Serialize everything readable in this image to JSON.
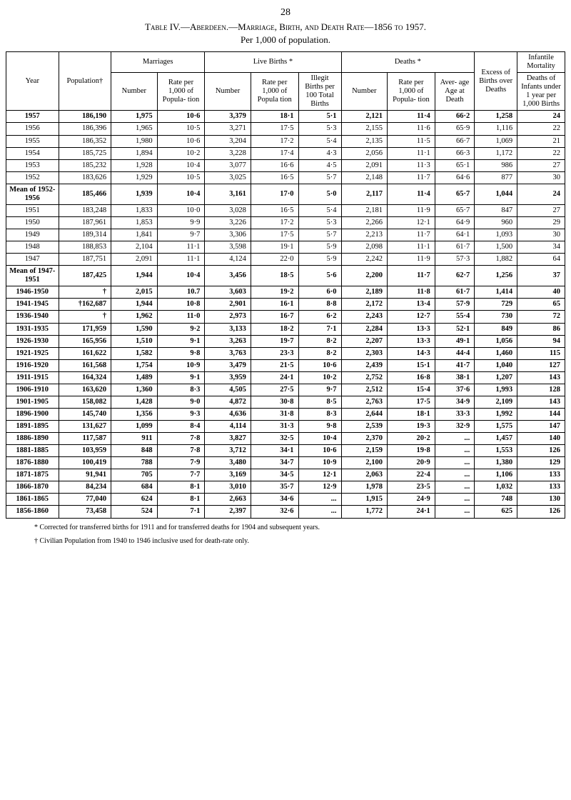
{
  "page_number": "28",
  "title": "Table IV.—Aberdeen.—Marriage, Birth, and Death Rate—1856 to 1957.",
  "subtitle": "Per 1,000 of population.",
  "headers": {
    "year": "Year",
    "population": "Population†",
    "marriages": "Marriages",
    "live_births": "Live Births *",
    "deaths": "Deaths *",
    "excess": "Excess of Births over Deaths",
    "infantile": "Infantile Mortality",
    "number": "Number",
    "marr_rate": "Rate per 1,000 of Popula- tion",
    "birth_rate": "Rate per 1,000 of Popula tion",
    "illegit": "Illegit Births per 100 Total Births",
    "death_rate": "Rate per 1,000 of Popula- tion",
    "aver_age": "Aver- age Age at Death",
    "deaths_of": "Deaths of Infants under 1 year per 1,000 Births"
  },
  "rows": [
    {
      "y": "1957",
      "pop": "186,190",
      "mn": "1,975",
      "mr": "10·6",
      "bn": "3,379",
      "br": "18·1",
      "il": "5·1",
      "dn": "2,121",
      "dr": "11·4",
      "aa": "66·2",
      "ex": "1,258",
      "im": "24",
      "bold": true,
      "sep": true
    },
    {
      "y": "1956",
      "pop": "186,396",
      "mn": "1,965",
      "mr": "10·5",
      "bn": "3,271",
      "br": "17·5",
      "il": "5·3",
      "dn": "2,155",
      "dr": "11·6",
      "aa": "65·9",
      "ex": "1,116",
      "im": "22"
    },
    {
      "y": "1955",
      "pop": "186,352",
      "mn": "1,980",
      "mr": "10·6",
      "bn": "3,204",
      "br": "17·2",
      "il": "5·4",
      "dn": "2,135",
      "dr": "11·5",
      "aa": "66·7",
      "ex": "1,069",
      "im": "21"
    },
    {
      "y": "1954",
      "pop": "185,725",
      "mn": "1,894",
      "mr": "10·2",
      "bn": "3,228",
      "br": "17·4",
      "il": "4·3",
      "dn": "2,056",
      "dr": "11·1",
      "aa": "66·3",
      "ex": "1,172",
      "im": "22"
    },
    {
      "y": "1953",
      "pop": "185,232",
      "mn": "1,928",
      "mr": "10·4",
      "bn": "3,077",
      "br": "16·6",
      "il": "4·5",
      "dn": "2,091",
      "dr": "11·3",
      "aa": "65·1",
      "ex": "986",
      "im": "27"
    },
    {
      "y": "1952",
      "pop": "183,626",
      "mn": "1,929",
      "mr": "10·5",
      "bn": "3,025",
      "br": "16·5",
      "il": "5·7",
      "dn": "2,148",
      "dr": "11·7",
      "aa": "64·6",
      "ex": "877",
      "im": "30",
      "sep": true
    },
    {
      "y": "Mean of 1952-1956",
      "pop": "185,466",
      "mn": "1,939",
      "mr": "10·4",
      "bn": "3,161",
      "br": "17·0",
      "il": "5·0",
      "dn": "2,117",
      "dr": "11·4",
      "aa": "65·7",
      "ex": "1,044",
      "im": "24",
      "bold": true,
      "sep": true
    },
    {
      "y": "1951",
      "pop": "183,248",
      "mn": "1,833",
      "mr": "10·0",
      "bn": "3,028",
      "br": "16·5",
      "il": "5·4",
      "dn": "2,181",
      "dr": "11·9",
      "aa": "65·7",
      "ex": "847",
      "im": "27"
    },
    {
      "y": "1950",
      "pop": "187,961",
      "mn": "1,853",
      "mr": "9·9",
      "bn": "3,226",
      "br": "17·2",
      "il": "5·3",
      "dn": "2,266",
      "dr": "12·1",
      "aa": "64·9",
      "ex": "960",
      "im": "29"
    },
    {
      "y": "1949",
      "pop": "189,314",
      "mn": "1,841",
      "mr": "9·7",
      "bn": "3,306",
      "br": "17·5",
      "il": "5·7",
      "dn": "2,213",
      "dr": "11·7",
      "aa": "64·1",
      "ex": "1,093",
      "im": "30"
    },
    {
      "y": "1948",
      "pop": "188,853",
      "mn": "2,104",
      "mr": "11·1",
      "bn": "3,598",
      "br": "19·1",
      "il": "5·9",
      "dn": "2,098",
      "dr": "11·1",
      "aa": "61·7",
      "ex": "1,500",
      "im": "34"
    },
    {
      "y": "1947",
      "pop": "187,751",
      "mn": "2,091",
      "mr": "11·1",
      "bn": "4,124",
      "br": "22·0",
      "il": "5·9",
      "dn": "2,242",
      "dr": "11·9",
      "aa": "57·3",
      "ex": "1,882",
      "im": "64",
      "sep": true
    },
    {
      "y": "Mean of 1947-1951",
      "pop": "187,425",
      "mn": "1,944",
      "mr": "10·4",
      "bn": "3,456",
      "br": "18·5",
      "il": "5·6",
      "dn": "2,200",
      "dr": "11·7",
      "aa": "62·7",
      "ex": "1,256",
      "im": "37",
      "bold": true,
      "sep": true
    },
    {
      "y": "1946-1950",
      "pop": "†",
      "mn": "2,015",
      "mr": "10.7",
      "bn": "3,603",
      "br": "19·2",
      "il": "6·0",
      "dn": "2,189",
      "dr": "11·8",
      "aa": "61·7",
      "ex": "1,414",
      "im": "40",
      "bold": true
    },
    {
      "y": "1941-1945",
      "pop": "†162,687",
      "mn": "1,944",
      "mr": "10·8",
      "bn": "2,901",
      "br": "16·1",
      "il": "8·8",
      "dn": "2,172",
      "dr": "13·4",
      "aa": "57·9",
      "ex": "729",
      "im": "65",
      "bold": true
    },
    {
      "y": "1936-1940",
      "pop": "†",
      "mn": "1,962",
      "mr": "11·0",
      "bn": "2,973",
      "br": "16·7",
      "il": "6·2",
      "dn": "2,243",
      "dr": "12·7",
      "aa": "55·4",
      "ex": "730",
      "im": "72",
      "bold": true
    },
    {
      "y": "1931-1935",
      "pop": "171,959",
      "mn": "1,590",
      "mr": "9·2",
      "bn": "3,133",
      "br": "18·2",
      "il": "7·1",
      "dn": "2,284",
      "dr": "13·3",
      "aa": "52·1",
      "ex": "849",
      "im": "86",
      "bold": true
    },
    {
      "y": "1926-1930",
      "pop": "165,956",
      "mn": "1,510",
      "mr": "9·1",
      "bn": "3,263",
      "br": "19·7",
      "il": "8·2",
      "dn": "2,207",
      "dr": "13·3",
      "aa": "49·1",
      "ex": "1,056",
      "im": "94",
      "bold": true
    },
    {
      "y": "1921-1925",
      "pop": "161,622",
      "mn": "1,582",
      "mr": "9·8",
      "bn": "3,763",
      "br": "23·3",
      "il": "8·2",
      "dn": "2,303",
      "dr": "14·3",
      "aa": "44·4",
      "ex": "1,460",
      "im": "115",
      "bold": true
    },
    {
      "y": "1916-1920",
      "pop": "161,568",
      "mn": "1,754",
      "mr": "10·9",
      "bn": "3,479",
      "br": "21·5",
      "il": "10·6",
      "dn": "2,439",
      "dr": "15·1",
      "aa": "41·7",
      "ex": "1,040",
      "im": "127",
      "bold": true
    },
    {
      "y": "1911-1915",
      "pop": "164,324",
      "mn": "1,489",
      "mr": "9·1",
      "bn": "3,959",
      "br": "24·1",
      "il": "10·2",
      "dn": "2,752",
      "dr": "16·8",
      "aa": "38·1",
      "ex": "1,207",
      "im": "143",
      "bold": true
    },
    {
      "y": "1906-1910",
      "pop": "163,620",
      "mn": "1,360",
      "mr": "8·3",
      "bn": "4,505",
      "br": "27·5",
      "il": "9·7",
      "dn": "2,512",
      "dr": "15·4",
      "aa": "37·6",
      "ex": "1,993",
      "im": "128",
      "bold": true
    },
    {
      "y": "1901-1905",
      "pop": "158,082",
      "mn": "1,428",
      "mr": "9·0",
      "bn": "4,872",
      "br": "30·8",
      "il": "8·5",
      "dn": "2,763",
      "dr": "17·5",
      "aa": "34·9",
      "ex": "2,109",
      "im": "143",
      "bold": true
    },
    {
      "y": "1896-1900",
      "pop": "145,740",
      "mn": "1,356",
      "mr": "9·3",
      "bn": "4,636",
      "br": "31·8",
      "il": "8·3",
      "dn": "2,644",
      "dr": "18·1",
      "aa": "33·3",
      "ex": "1,992",
      "im": "144",
      "bold": true
    },
    {
      "y": "1891-1895",
      "pop": "131,627",
      "mn": "1,099",
      "mr": "8·4",
      "bn": "4,114",
      "br": "31·3",
      "il": "9·8",
      "dn": "2,539",
      "dr": "19·3",
      "aa": "32·9",
      "ex": "1,575",
      "im": "147",
      "bold": true
    },
    {
      "y": "1886-1890",
      "pop": "117,587",
      "mn": "911",
      "mr": "7·8",
      "bn": "3,827",
      "br": "32·5",
      "il": "10·4",
      "dn": "2,370",
      "dr": "20·2",
      "aa": "...",
      "ex": "1,457",
      "im": "140",
      "bold": true
    },
    {
      "y": "1881-1885",
      "pop": "103,959",
      "mn": "848",
      "mr": "7·8",
      "bn": "3,712",
      "br": "34·1",
      "il": "10·6",
      "dn": "2,159",
      "dr": "19·8",
      "aa": "...",
      "ex": "1,553",
      "im": "126",
      "bold": true
    },
    {
      "y": "1876-1880",
      "pop": "100,419",
      "mn": "788",
      "mr": "7·9",
      "bn": "3,480",
      "br": "34·7",
      "il": "10·9",
      "dn": "2,100",
      "dr": "20·9",
      "aa": "...",
      "ex": "1,380",
      "im": "129",
      "bold": true
    },
    {
      "y": "1871-1875",
      "pop": "91,941",
      "mn": "705",
      "mr": "7·7",
      "bn": "3,169",
      "br": "34·5",
      "il": "12·1",
      "dn": "2,063",
      "dr": "22·4",
      "aa": "...",
      "ex": "1,106",
      "im": "133",
      "bold": true
    },
    {
      "y": "1866-1870",
      "pop": "84,234",
      "mn": "684",
      "mr": "8·1",
      "bn": "3,010",
      "br": "35·7",
      "il": "12·9",
      "dn": "1,978",
      "dr": "23·5",
      "aa": "...",
      "ex": "1,032",
      "im": "133",
      "bold": true
    },
    {
      "y": "1861-1865",
      "pop": "77,040",
      "mn": "624",
      "mr": "8·1",
      "bn": "2,663",
      "br": "34·6",
      "il": "...",
      "dn": "1,915",
      "dr": "24·9",
      "aa": "...",
      "ex": "748",
      "im": "130",
      "bold": true
    },
    {
      "y": "1856-1860",
      "pop": "73,458",
      "mn": "524",
      "mr": "7·1",
      "bn": "2,397",
      "br": "32·6",
      "il": "...",
      "dn": "1,772",
      "dr": "24·1",
      "aa": "...",
      "ex": "625",
      "im": "126",
      "bold": true
    }
  ],
  "footnotes": {
    "a": "* Corrected for transferred births for 1911 and for transferred deaths for 1904 and subsequent years.",
    "b": "† Civilian Population from 1940 to 1946 inclusive used for death-rate only."
  }
}
